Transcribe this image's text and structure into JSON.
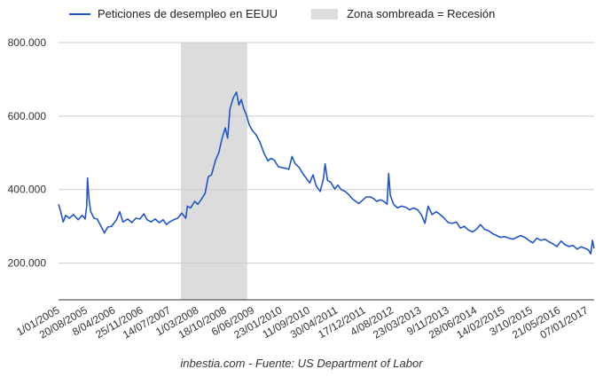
{
  "chart_data": {
    "type": "line",
    "legend": {
      "series_label": "Peticiones de desempleo en EEUU",
      "shade_label": "Zona sombreada = Recesión",
      "placement": "top"
    },
    "source_note": "inbestia.com - Fuente: US Department of Labor",
    "ylim": [
      100000,
      800000
    ],
    "yticks": [
      {
        "value": 200000,
        "label": "200.000"
      },
      {
        "value": 400000,
        "label": "400.000"
      },
      {
        "value": 600000,
        "label": "600.000"
      },
      {
        "value": 800000,
        "label": "800.000"
      }
    ],
    "xlim": [
      "2005-01-01",
      "2017-10-01"
    ],
    "xticks": [
      "1/01/2005",
      "20/08/2005",
      "8/04/2006",
      "25/11/2006",
      "14/07/2007",
      "1/03/2008",
      "18/10/2008",
      "6/06/2009",
      "23/01/2010",
      "11/09/2010",
      "30/04/2011",
      "17/12/2011",
      "4/08/2012",
      "23/03/2013",
      "9/11/2013",
      "28/06/2014",
      "14/02/2015",
      "3/10/2015",
      "21/05/2016",
      "07/01/2017"
    ],
    "grid": true,
    "recession": {
      "start": "2007-12-01",
      "end": "2009-06-30",
      "color": "#dcdcdc"
    },
    "series": [
      {
        "name": "Peticiones de desempleo en EEUU",
        "color": "#1f55c8",
        "points": [
          [
            "2005-01-01",
            360000
          ],
          [
            "2005-01-20",
            340000
          ],
          [
            "2005-02-10",
            312000
          ],
          [
            "2005-03-05",
            330000
          ],
          [
            "2005-04-05",
            322000
          ],
          [
            "2005-05-10",
            332000
          ],
          [
            "2005-06-20",
            318000
          ],
          [
            "2005-07-25",
            330000
          ],
          [
            "2005-08-20",
            320000
          ],
          [
            "2005-09-03",
            355000
          ],
          [
            "2005-09-10",
            432000
          ],
          [
            "2005-09-17",
            398000
          ],
          [
            "2005-09-24",
            372000
          ],
          [
            "2005-10-08",
            340000
          ],
          [
            "2005-11-05",
            322000
          ],
          [
            "2005-12-03",
            320000
          ],
          [
            "2006-01-14",
            295000
          ],
          [
            "2006-02-04",
            282000
          ],
          [
            "2006-03-04",
            298000
          ],
          [
            "2006-04-08",
            300000
          ],
          [
            "2006-05-20",
            318000
          ],
          [
            "2006-06-17",
            340000
          ],
          [
            "2006-07-15",
            312000
          ],
          [
            "2006-08-26",
            320000
          ],
          [
            "2006-09-30",
            310000
          ],
          [
            "2006-11-04",
            322000
          ],
          [
            "2006-12-09",
            320000
          ],
          [
            "2007-01-13",
            334000
          ],
          [
            "2007-02-10",
            318000
          ],
          [
            "2007-03-17",
            312000
          ],
          [
            "2007-04-21",
            320000
          ],
          [
            "2007-05-26",
            310000
          ],
          [
            "2007-06-30",
            318000
          ],
          [
            "2007-07-28",
            305000
          ],
          [
            "2007-08-25",
            312000
          ],
          [
            "2007-09-29",
            318000
          ],
          [
            "2007-11-03",
            322000
          ],
          [
            "2007-12-08",
            336000
          ],
          [
            "2008-01-12",
            322000
          ],
          [
            "2008-01-26",
            355000
          ],
          [
            "2008-02-23",
            350000
          ],
          [
            "2008-03-29",
            368000
          ],
          [
            "2008-04-26",
            360000
          ],
          [
            "2008-05-24",
            372000
          ],
          [
            "2008-06-28",
            390000
          ],
          [
            "2008-07-26",
            435000
          ],
          [
            "2008-08-23",
            440000
          ],
          [
            "2008-09-27",
            480000
          ],
          [
            "2008-10-25",
            500000
          ],
          [
            "2008-11-22",
            538000
          ],
          [
            "2008-12-20",
            568000
          ],
          [
            "2009-01-10",
            540000
          ],
          [
            "2009-01-31",
            620000
          ],
          [
            "2009-02-28",
            650000
          ],
          [
            "2009-03-28",
            665000
          ],
          [
            "2009-04-18",
            630000
          ],
          [
            "2009-05-09",
            645000
          ],
          [
            "2009-05-30",
            620000
          ],
          [
            "2009-06-20",
            605000
          ],
          [
            "2009-07-18",
            575000
          ],
          [
            "2009-08-15",
            560000
          ],
          [
            "2009-09-12",
            550000
          ],
          [
            "2009-10-17",
            530000
          ],
          [
            "2009-11-21",
            500000
          ],
          [
            "2009-12-26",
            478000
          ],
          [
            "2010-01-23",
            485000
          ],
          [
            "2010-02-20",
            480000
          ],
          [
            "2010-03-27",
            462000
          ],
          [
            "2010-04-24",
            460000
          ],
          [
            "2010-05-29",
            458000
          ],
          [
            "2010-06-26",
            455000
          ],
          [
            "2010-07-24",
            490000
          ],
          [
            "2010-08-21",
            470000
          ],
          [
            "2010-09-25",
            460000
          ],
          [
            "2010-10-23",
            445000
          ],
          [
            "2010-11-27",
            430000
          ],
          [
            "2010-12-25",
            418000
          ],
          [
            "2011-01-22",
            440000
          ],
          [
            "2011-02-19",
            410000
          ],
          [
            "2011-03-26",
            395000
          ],
          [
            "2011-04-23",
            430000
          ],
          [
            "2011-05-07",
            470000
          ],
          [
            "2011-05-28",
            425000
          ],
          [
            "2011-06-25",
            420000
          ],
          [
            "2011-07-30",
            402000
          ],
          [
            "2011-08-27",
            412000
          ],
          [
            "2011-09-24",
            400000
          ],
          [
            "2011-10-29",
            395000
          ],
          [
            "2011-12-03",
            385000
          ],
          [
            "2011-12-31",
            375000
          ],
          [
            "2012-01-28",
            368000
          ],
          [
            "2012-02-25",
            362000
          ],
          [
            "2012-03-31",
            372000
          ],
          [
            "2012-04-28",
            380000
          ],
          [
            "2012-06-02",
            380000
          ],
          [
            "2012-06-30",
            376000
          ],
          [
            "2012-07-28",
            368000
          ],
          [
            "2012-09-01",
            372000
          ],
          [
            "2012-09-29",
            368000
          ],
          [
            "2012-10-27",
            360000
          ],
          [
            "2012-11-10",
            444000
          ],
          [
            "2012-11-24",
            385000
          ],
          [
            "2012-12-22",
            360000
          ],
          [
            "2013-01-26",
            350000
          ],
          [
            "2013-03-02",
            355000
          ],
          [
            "2013-04-06",
            352000
          ],
          [
            "2013-05-11",
            345000
          ],
          [
            "2013-06-15",
            350000
          ],
          [
            "2013-07-20",
            345000
          ],
          [
            "2013-08-24",
            330000
          ],
          [
            "2013-09-21",
            308000
          ],
          [
            "2013-10-19",
            355000
          ],
          [
            "2013-11-23",
            332000
          ],
          [
            "2013-12-28",
            340000
          ],
          [
            "2014-02-01",
            332000
          ],
          [
            "2014-03-08",
            322000
          ],
          [
            "2014-04-12",
            310000
          ],
          [
            "2014-05-17",
            308000
          ],
          [
            "2014-06-21",
            312000
          ],
          [
            "2014-07-26",
            295000
          ],
          [
            "2014-08-30",
            300000
          ],
          [
            "2014-10-04",
            290000
          ],
          [
            "2014-11-08",
            285000
          ],
          [
            "2014-12-13",
            292000
          ],
          [
            "2015-01-17",
            305000
          ],
          [
            "2015-02-21",
            292000
          ],
          [
            "2015-03-28",
            288000
          ],
          [
            "2015-05-02",
            280000
          ],
          [
            "2015-06-06",
            275000
          ],
          [
            "2015-07-11",
            270000
          ],
          [
            "2015-08-15",
            272000
          ],
          [
            "2015-09-19",
            268000
          ],
          [
            "2015-10-24",
            265000
          ],
          [
            "2015-11-28",
            270000
          ],
          [
            "2016-01-02",
            275000
          ],
          [
            "2016-02-06",
            270000
          ],
          [
            "2016-03-12",
            262000
          ],
          [
            "2016-04-16",
            255000
          ],
          [
            "2016-05-21",
            268000
          ],
          [
            "2016-06-25",
            262000
          ],
          [
            "2016-07-30",
            265000
          ],
          [
            "2016-09-03",
            258000
          ],
          [
            "2016-10-08",
            252000
          ],
          [
            "2016-11-12",
            245000
          ],
          [
            "2016-12-17",
            260000
          ],
          [
            "2017-01-21",
            250000
          ],
          [
            "2017-02-25",
            245000
          ],
          [
            "2017-04-01",
            248000
          ],
          [
            "2017-05-06",
            238000
          ],
          [
            "2017-06-10",
            244000
          ],
          [
            "2017-07-15",
            240000
          ],
          [
            "2017-08-12",
            236000
          ],
          [
            "2017-09-02",
            225000
          ],
          [
            "2017-09-16",
            262000
          ],
          [
            "2017-09-30",
            240000
          ]
        ]
      }
    ]
  }
}
